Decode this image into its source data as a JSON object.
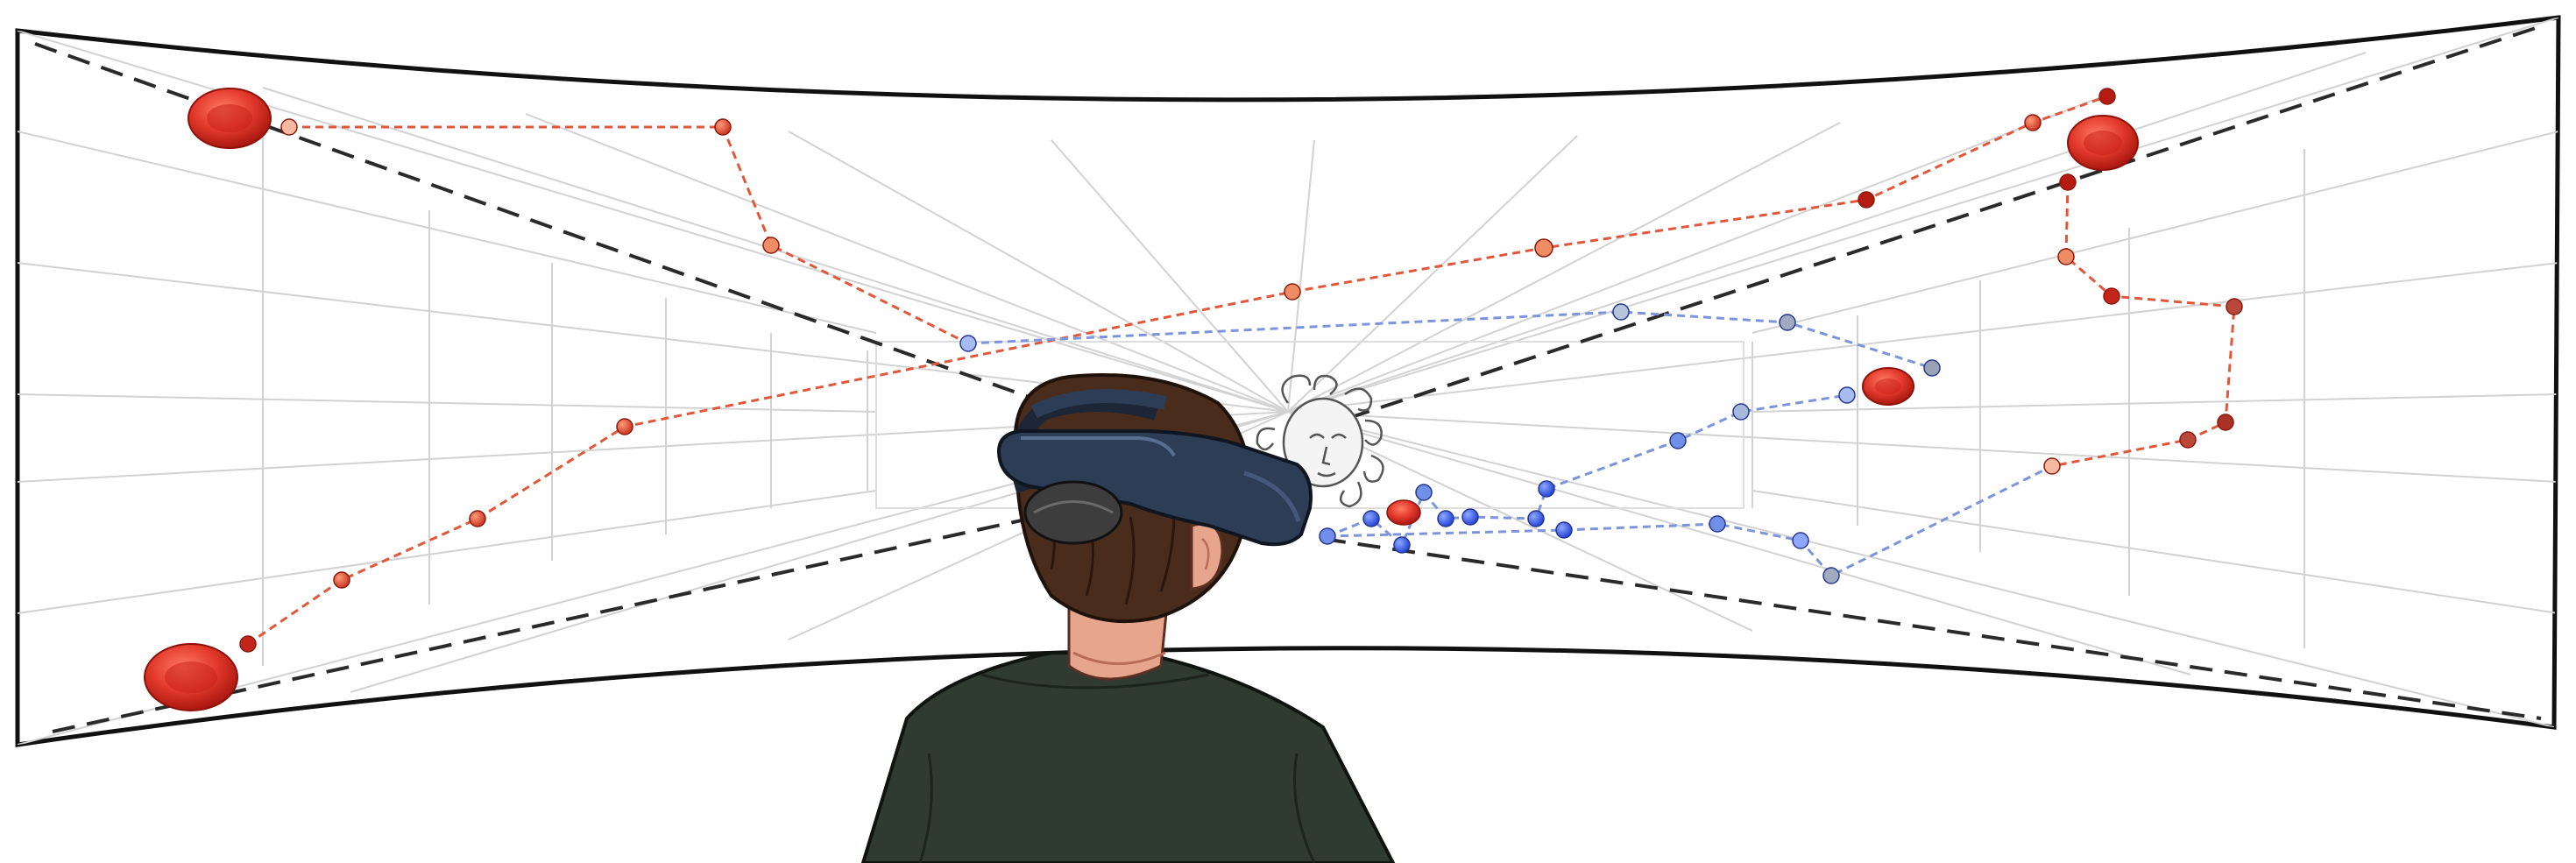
{
  "scene": {
    "kind": "illustration",
    "colors": {
      "screen_fill": "#ffffff",
      "screen_border": "#111111",
      "grid_line": "#cfcfcf",
      "guide_line": "#2a2a2a",
      "red_trajectory": "#e2573a",
      "blue_trajectory": "#7b95dc",
      "blood_cell": "#d42d22",
      "headset": "#2c3d55",
      "hair": "#4a2c1c",
      "skin": "#e7a58d",
      "shirt": "#2f3a30"
    },
    "icons": [
      "curved-projection-screen",
      "perspective-corridor-grid",
      "red-blood-cell-icon",
      "medusa-head-icon",
      "vr-headset-icon",
      "viewer-figure"
    ]
  }
}
